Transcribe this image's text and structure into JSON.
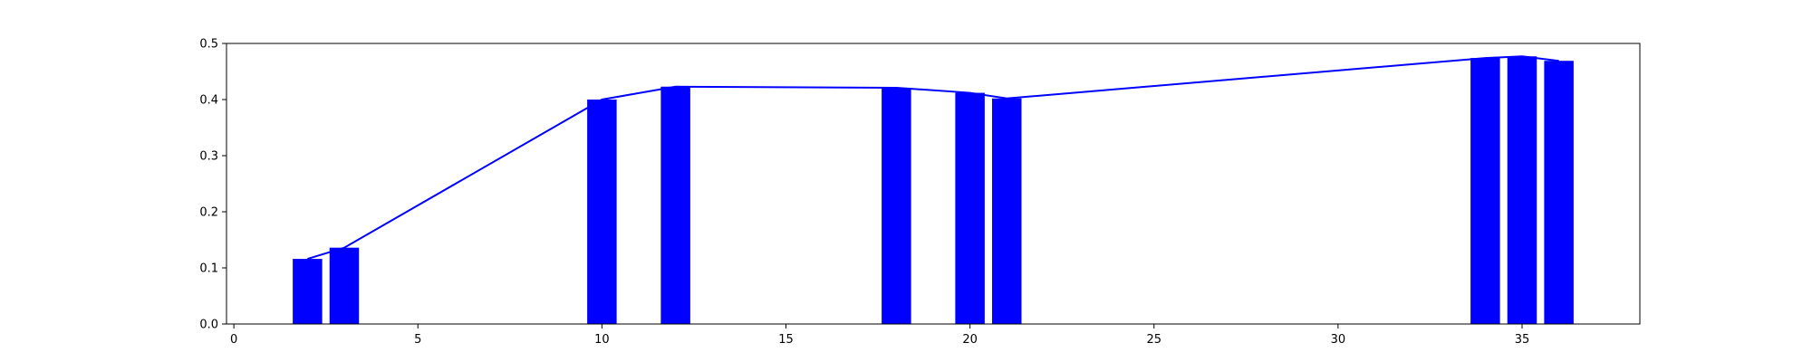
{
  "chart_data": {
    "type": "bar",
    "title": "",
    "xlabel": "",
    "ylabel": "",
    "xlim": [
      -0.2,
      38.2
    ],
    "ylim": [
      0,
      0.5
    ],
    "x_ticks": [
      0,
      5,
      10,
      15,
      20,
      25,
      30,
      35
    ],
    "y_ticks": [
      0.0,
      0.1,
      0.2,
      0.3,
      0.4,
      0.5
    ],
    "x_tick_labels": [
      "0",
      "5",
      "10",
      "15",
      "20",
      "25",
      "30",
      "35"
    ],
    "y_tick_labels": [
      "0.0",
      "0.1",
      "0.2",
      "0.3",
      "0.4",
      "0.5"
    ],
    "bar_width": 0.8,
    "grid": false,
    "legend": null,
    "series": [
      {
        "type": "bar",
        "color": "#0000ff",
        "x": [
          2,
          3,
          10,
          12,
          18,
          20,
          21,
          34,
          35,
          36
        ],
        "values": [
          0.116,
          0.136,
          0.4,
          0.423,
          0.421,
          0.412,
          0.402,
          0.474,
          0.477,
          0.469
        ]
      },
      {
        "type": "line",
        "color": "#0000ff",
        "x": [
          2,
          3,
          10,
          12,
          18,
          20,
          21,
          34,
          35,
          36
        ],
        "values": [
          0.116,
          0.136,
          0.4,
          0.423,
          0.421,
          0.412,
          0.402,
          0.474,
          0.477,
          0.469
        ]
      }
    ]
  }
}
